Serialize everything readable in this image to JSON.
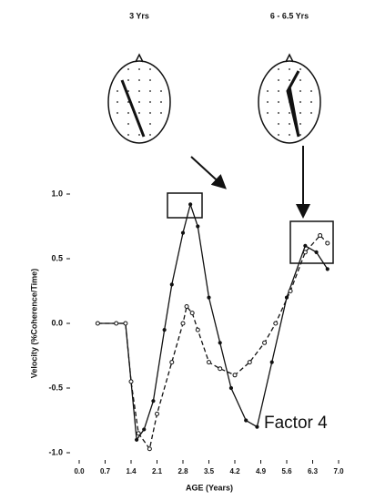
{
  "chart_data": {
    "type": "line",
    "annotations": [
      "3 Yrs",
      "6 - 6.5 Yrs",
      "Factor 4"
    ],
    "xlabel": "AGE (Years)",
    "ylabel": "Velocity (%Coherence/Time)",
    "xlim": [
      0,
      7
    ],
    "ylim": [
      -1,
      1
    ],
    "xticks": [
      {
        "value": 0,
        "label": "0.0"
      },
      0.7,
      1.4,
      2.1,
      2.8,
      3.5,
      4.2,
      4.9,
      5.6,
      6.3,
      {
        "value": 7,
        "label": "7.0"
      }
    ],
    "yticks": [
      {
        "value": -1,
        "label": "-1.0"
      },
      -0.5,
      {
        "value": 0,
        "label": "0.0"
      },
      0.5,
      {
        "value": 1,
        "label": "1.0"
      }
    ],
    "series": [
      {
        "color": "#111111",
        "dashed": false,
        "x": [
          0.5,
          1.0,
          1.25,
          1.4,
          1.55,
          1.75,
          2.0,
          2.3,
          2.5,
          2.8,
          3.0,
          3.2,
          3.5,
          3.8,
          4.1,
          4.5,
          4.8,
          5.2,
          5.6,
          6.1,
          6.4,
          6.7
        ],
        "values": [
          0,
          0,
          0,
          -0.45,
          -0.9,
          -0.82,
          -0.6,
          -0.05,
          0.3,
          0.7,
          0.92,
          0.75,
          0.2,
          -0.15,
          -0.5,
          -0.75,
          -0.8,
          -0.3,
          0.2,
          0.6,
          0.55,
          0.42
        ]
      },
      {
        "color": "#111111",
        "dashed": true,
        "x": [
          0.5,
          1.0,
          1.25,
          1.4,
          1.6,
          1.9,
          2.1,
          2.5,
          2.8,
          2.9,
          3.05,
          3.2,
          3.5,
          3.8,
          4.2,
          4.6,
          5.0,
          5.3,
          5.7,
          6.1,
          6.5,
          6.7
        ],
        "values": [
          0,
          0,
          0,
          -0.45,
          -0.85,
          -0.97,
          -0.7,
          -0.3,
          0,
          0.13,
          0.08,
          -0.05,
          -0.3,
          -0.35,
          -0.4,
          -0.3,
          -0.15,
          0,
          0.25,
          0.55,
          0.68,
          0.62
        ]
      }
    ]
  }
}
